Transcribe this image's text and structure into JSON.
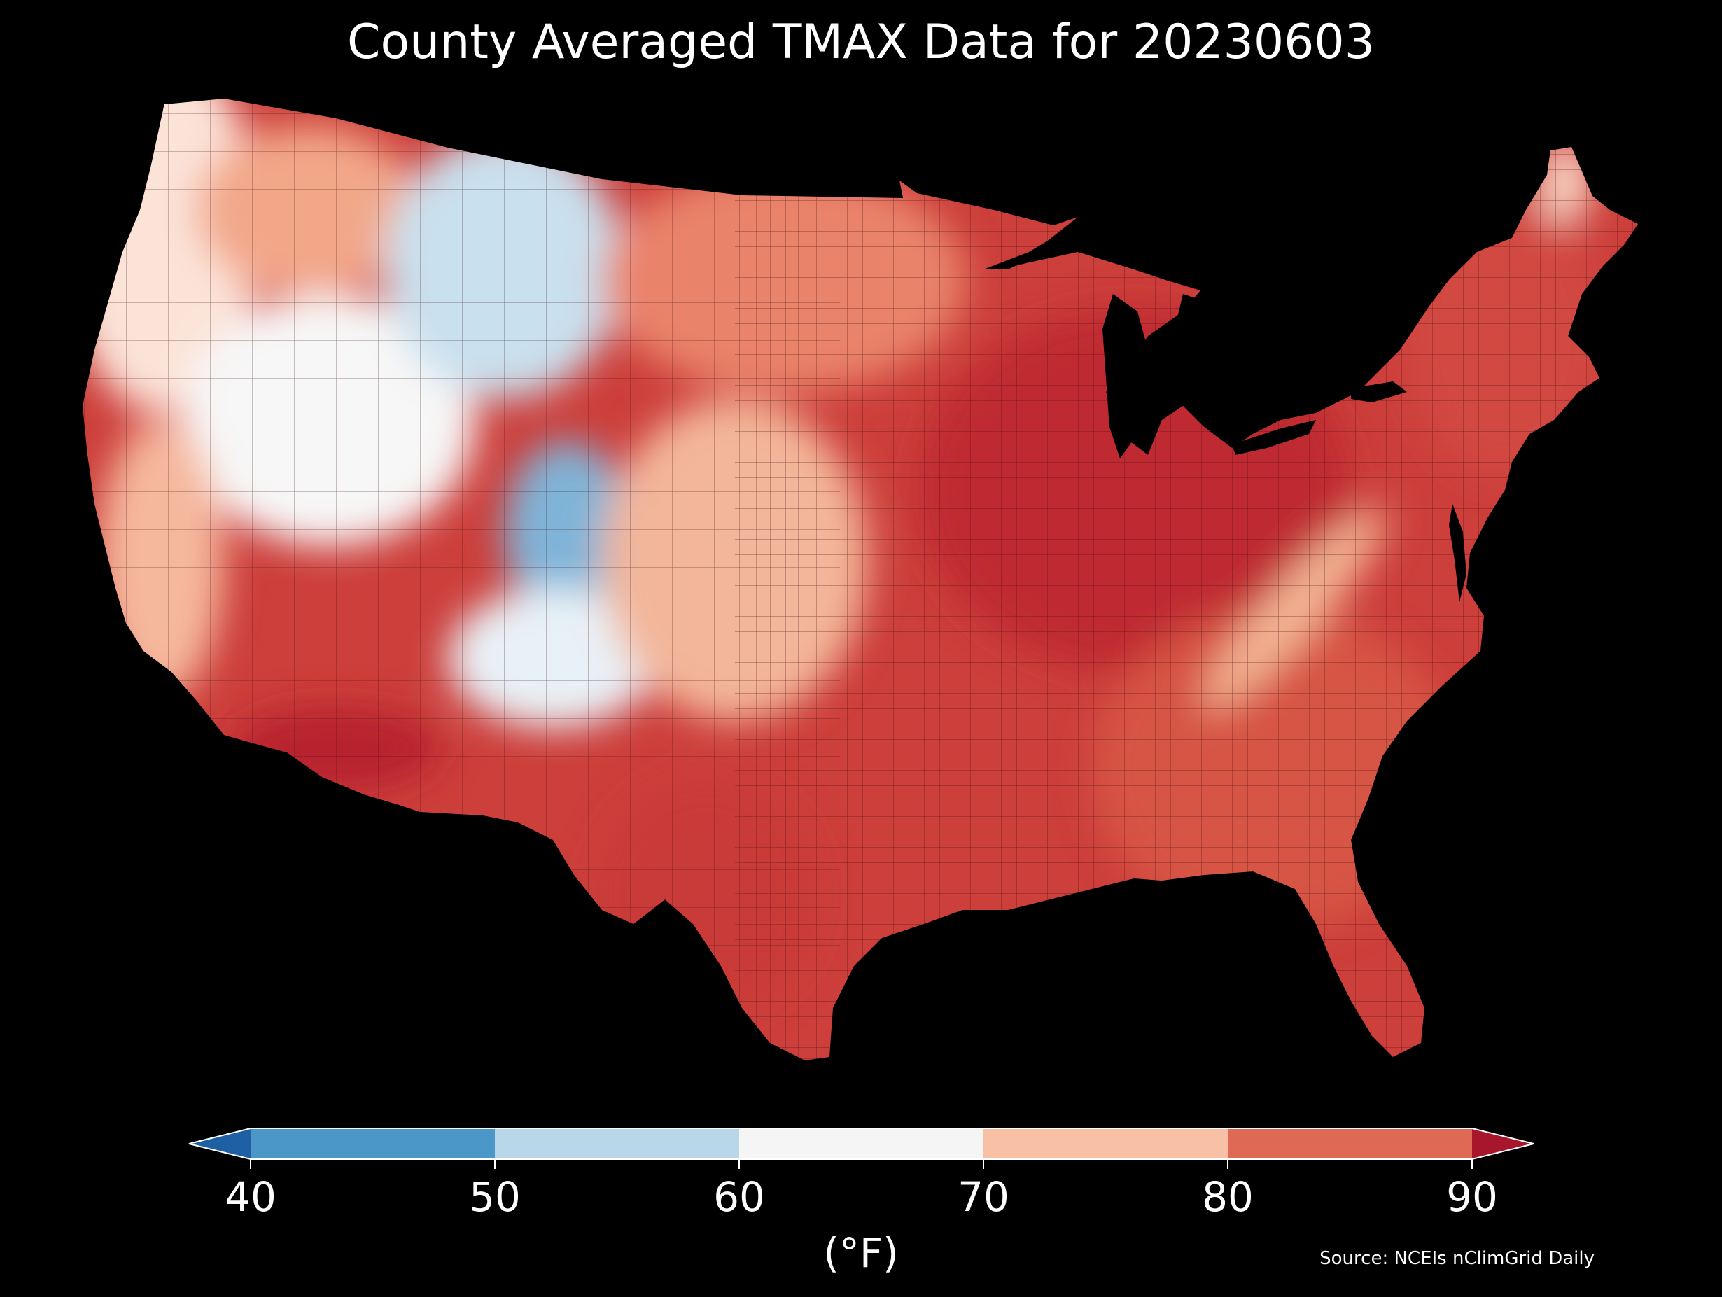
{
  "title": "County Averaged TMAX Data for 20230603",
  "colorbar": {
    "ticks": [
      "40",
      "50",
      "60",
      "70",
      "80",
      "90"
    ],
    "unit": "(°F)",
    "bins": [
      {
        "from": 40,
        "to": 50,
        "color": "#4b98c8"
      },
      {
        "from": 50,
        "to": 60,
        "color": "#b8d8ea"
      },
      {
        "from": 60,
        "to": 70,
        "color": "#f5f5f5"
      },
      {
        "from": 70,
        "to": 80,
        "color": "#f8c1a6"
      },
      {
        "from": 80,
        "to": 90,
        "color": "#de6a55"
      }
    ],
    "under_color": "#1f5fa3",
    "over_color": "#a7162b"
  },
  "source": "Source: NCEIs nClimGrid Daily",
  "regions": [
    {
      "name": "northwest-coast",
      "color": "#fbe3d8"
    },
    {
      "name": "interior-northwest",
      "color": "#f2a789"
    },
    {
      "name": "great-basin",
      "color": "#f7f7f7"
    },
    {
      "name": "northern-rockies",
      "color": "#c9e0ee"
    },
    {
      "name": "central-rockies",
      "color": "#7fb4d8"
    },
    {
      "name": "southern-rockies",
      "color": "#e8f1f7"
    },
    {
      "name": "northern-plains",
      "color": "#e9836a"
    },
    {
      "name": "central-plains",
      "color": "#f3b69a"
    },
    {
      "name": "desert-southwest",
      "color": "#b7222f"
    },
    {
      "name": "california-coast",
      "color": "#f5b89d"
    },
    {
      "name": "texas-south",
      "color": "#c93a38"
    },
    {
      "name": "midwest-east",
      "color": "#bf2b33"
    },
    {
      "name": "southeast",
      "color": "#d75445"
    },
    {
      "name": "appalachian-ridge",
      "color": "#f3b493"
    },
    {
      "name": "northeast",
      "color": "#d24a42"
    },
    {
      "name": "maine-north",
      "color": "#f8d3c2"
    }
  ]
}
